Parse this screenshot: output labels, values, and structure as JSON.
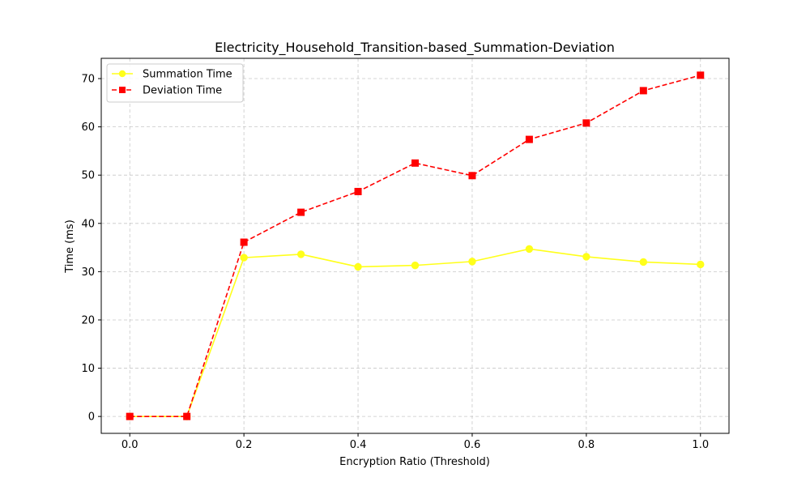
{
  "chart_data": {
    "type": "line",
    "title": "Electricity_Household_Transition-based_Summation-Deviation",
    "xlabel": "Encryption Ratio (Threshold)",
    "ylabel": "Time (ms)",
    "x": [
      0.0,
      0.1,
      0.2,
      0.3,
      0.4,
      0.5,
      0.6,
      0.7,
      0.8,
      0.9,
      1.0
    ],
    "xlim": [
      -0.05,
      1.05
    ],
    "ylim": [
      -3.5,
      74.2
    ],
    "x_ticks": [
      "0.0",
      "0.2",
      "0.4",
      "0.6",
      "0.8",
      "1.0"
    ],
    "y_ticks": [
      "0",
      "10",
      "20",
      "30",
      "40",
      "50",
      "60",
      "70"
    ],
    "grid": true,
    "legend_position": "top-left",
    "series": [
      {
        "name": "Summation Time",
        "color": "#ffff1a",
        "line_style": "solid",
        "marker": "circle",
        "values": [
          0.0,
          0.0,
          32.9,
          33.6,
          31.0,
          31.3,
          32.1,
          34.7,
          33.1,
          32.0,
          31.5
        ]
      },
      {
        "name": "Deviation Time",
        "color": "#ff0000",
        "line_style": "dashed",
        "marker": "square",
        "values": [
          0.0,
          0.0,
          36.1,
          42.3,
          46.6,
          52.5,
          49.9,
          57.4,
          60.8,
          67.5,
          70.7
        ]
      }
    ]
  }
}
